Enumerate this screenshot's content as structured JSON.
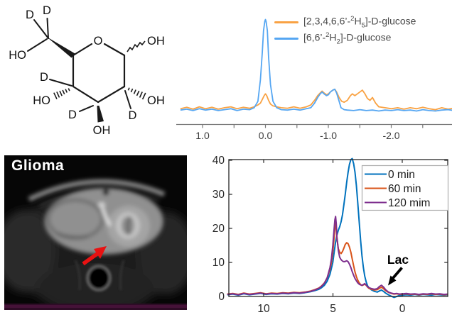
{
  "molecule": {
    "atom_o": "O",
    "atom_oh": "OH",
    "atom_ho": "HO",
    "atom_d": "D"
  },
  "nmr": {
    "x_ticks": [
      "1.0",
      "0.0",
      "-1.0",
      "-2.0"
    ],
    "legend": [
      {
        "pre": "[2,3,4,6,6’-",
        "mass": "2",
        "elem": "H",
        "count": "5",
        "post": "]-D-glucose"
      },
      {
        "pre": "[6,6’-",
        "mass": "2",
        "elem": "H",
        "count": "2",
        "post": "]-D-glucose"
      }
    ]
  },
  "mri": {
    "label": "Glioma"
  },
  "dmi": {
    "x_ticks": [
      "10",
      "5",
      "0"
    ],
    "y_ticks": [
      "40",
      "30",
      "20",
      "10",
      "0"
    ],
    "legend": [
      "0 min",
      "60 min",
      "120 mim"
    ],
    "annotation": "Lac"
  },
  "chart_data": [
    {
      "id": "nmr",
      "type": "line",
      "title": "2H NMR spectra of deuterated D-glucose",
      "x_axis_reversed": true,
      "xlim": [
        1.35,
        -3.0
      ],
      "x_tick_values": [
        1.0,
        0.0,
        -1.0,
        -2.0
      ],
      "grid": false,
      "legend_position": "top-right",
      "series": [
        {
          "name": "[2,3,4,6,6'-2H5]-D-glucose",
          "color": "#F9A243",
          "x": [
            1.35,
            1.25,
            1.15,
            1.05,
            0.95,
            0.85,
            0.75,
            0.65,
            0.55,
            0.45,
            0.35,
            0.25,
            0.18,
            0.12,
            0.08,
            0.05,
            0.02,
            0.0,
            -0.02,
            -0.05,
            -0.08,
            -0.12,
            -0.18,
            -0.25,
            -0.35,
            -0.45,
            -0.55,
            -0.65,
            -0.72,
            -0.78,
            -0.83,
            -0.87,
            -0.9,
            -0.93,
            -0.97,
            -1.0,
            -1.03,
            -1.07,
            -1.1,
            -1.13,
            -1.17,
            -1.21,
            -1.25,
            -1.3,
            -1.35,
            -1.38,
            -1.42,
            -1.46,
            -1.5,
            -1.54,
            -1.58,
            -1.62,
            -1.66,
            -1.7,
            -1.75,
            -1.8,
            -1.9,
            -2.0,
            -2.1,
            -2.2,
            -2.3,
            -2.4,
            -2.5,
            -2.6,
            -2.7,
            -2.8,
            -2.9,
            -3.0
          ],
          "y": [
            0.04,
            0.055,
            0.035,
            0.06,
            0.04,
            0.055,
            0.035,
            0.05,
            0.06,
            0.04,
            0.055,
            0.045,
            0.06,
            0.08,
            0.1,
            0.14,
            0.18,
            0.2,
            0.18,
            0.13,
            0.09,
            0.07,
            0.06,
            0.05,
            0.045,
            0.06,
            0.045,
            0.06,
            0.08,
            0.13,
            0.18,
            0.21,
            0.23,
            0.21,
            0.19,
            0.2,
            0.22,
            0.24,
            0.25,
            0.22,
            0.16,
            0.12,
            0.11,
            0.13,
            0.18,
            0.2,
            0.18,
            0.2,
            0.22,
            0.24,
            0.2,
            0.15,
            0.13,
            0.16,
            0.1,
            0.06,
            0.05,
            0.04,
            0.05,
            0.035,
            0.05,
            0.04,
            0.055,
            0.04,
            0.03,
            0.05,
            0.035,
            0.045
          ]
        },
        {
          "name": "[6,6'-2H2]-D-glucose",
          "color": "#55A6F2",
          "x": [
            1.35,
            1.25,
            1.15,
            1.05,
            0.95,
            0.85,
            0.75,
            0.65,
            0.55,
            0.45,
            0.35,
            0.25,
            0.18,
            0.12,
            0.08,
            0.05,
            0.03,
            0.01,
            0.0,
            -0.01,
            -0.03,
            -0.05,
            -0.08,
            -0.12,
            -0.18,
            -0.25,
            -0.35,
            -0.45,
            -0.55,
            -0.65,
            -0.72,
            -0.78,
            -0.83,
            -0.87,
            -0.9,
            -0.93,
            -0.97,
            -1.0,
            -1.03,
            -1.07,
            -1.1,
            -1.13,
            -1.17,
            -1.2,
            -1.25,
            -1.3,
            -1.4,
            -1.5,
            -1.6,
            -1.7,
            -1.8,
            -1.9,
            -2.0,
            -2.1,
            -2.2,
            -2.3,
            -2.4,
            -2.5,
            -2.6,
            -2.7,
            -2.8,
            -2.9,
            -3.0
          ],
          "y": [
            0.025,
            0.035,
            0.02,
            0.04,
            0.025,
            0.035,
            0.02,
            0.03,
            0.04,
            0.02,
            0.035,
            0.03,
            0.05,
            0.12,
            0.35,
            0.65,
            0.88,
            0.98,
            1.0,
            0.98,
            0.88,
            0.6,
            0.3,
            0.12,
            0.05,
            0.03,
            0.025,
            0.035,
            0.025,
            0.04,
            0.05,
            0.1,
            0.16,
            0.2,
            0.22,
            0.2,
            0.18,
            0.19,
            0.22,
            0.24,
            0.25,
            0.21,
            0.12,
            0.05,
            0.03,
            0.025,
            0.02,
            0.03,
            0.02,
            0.025,
            0.015,
            0.025,
            0.02,
            0.03,
            0.02,
            0.025,
            0.015,
            0.03,
            0.02,
            0.015,
            0.025,
            0.03,
            0.02
          ]
        }
      ]
    },
    {
      "id": "dmi",
      "type": "line",
      "title": "In vivo 2H spectra over time",
      "x_axis_reversed": true,
      "xlim": [
        12.6,
        -3.3
      ],
      "ylim": [
        0,
        42
      ],
      "x_tick_values": [
        10,
        5,
        0
      ],
      "y_tick_values": [
        0,
        10,
        20,
        30,
        40
      ],
      "grid": false,
      "legend_position": "top-right",
      "annotation": {
        "text": "Lac",
        "x": 1.3,
        "y": 3.3
      },
      "series": [
        {
          "name": "0 min",
          "color": "#0072BD",
          "x": [
            12.6,
            12.2,
            11.8,
            11.4,
            11.0,
            10.6,
            10.2,
            9.8,
            9.4,
            9.0,
            8.6,
            8.2,
            7.8,
            7.4,
            7.0,
            6.6,
            6.3,
            6.0,
            5.8,
            5.6,
            5.4,
            5.2,
            5.0,
            4.9,
            4.8,
            4.75,
            4.7,
            4.6,
            4.5,
            4.4,
            4.3,
            4.2,
            4.1,
            4.0,
            3.9,
            3.8,
            3.7,
            3.6,
            3.5,
            3.4,
            3.3,
            3.2,
            3.1,
            3.0,
            2.9,
            2.8,
            2.7,
            2.6,
            2.5,
            2.4,
            2.2,
            2.0,
            1.8,
            1.65,
            1.5,
            1.35,
            1.2,
            1.0,
            0.8,
            0.6,
            0.4,
            0.2,
            0.0,
            -0.3,
            -0.6,
            -0.9,
            -1.2,
            -1.5,
            -1.8,
            -2.1,
            -2.4,
            -2.7,
            -3.0,
            -3.3
          ],
          "y": [
            0.5,
            0.7,
            0.4,
            0.8,
            0.5,
            0.7,
            0.9,
            0.6,
            0.8,
            0.7,
            0.9,
            0.8,
            1.0,
            0.9,
            1.1,
            1.4,
            1.7,
            2.1,
            2.6,
            3.3,
            4.5,
            6.5,
            10.0,
            13.0,
            16.0,
            17.0,
            18.0,
            19.5,
            20.5,
            22.0,
            24.0,
            27.0,
            30.0,
            33.5,
            36.5,
            38.8,
            40.2,
            40.5,
            39.0,
            36.5,
            32.5,
            27.5,
            22.0,
            16.5,
            12.0,
            8.5,
            6.0,
            4.3,
            3.2,
            2.5,
            1.9,
            1.5,
            1.3,
            1.6,
            1.9,
            1.5,
            1.0,
            0.5,
            0.1,
            -0.3,
            0.0,
            0.3,
            0.4,
            0.5,
            0.4,
            0.6,
            0.4,
            0.6,
            0.5,
            0.4,
            0.6,
            0.5,
            0.4,
            0.5
          ]
        },
        {
          "name": "60 min",
          "color": "#D95319",
          "x": [
            12.6,
            12.2,
            11.8,
            11.4,
            11.0,
            10.6,
            10.2,
            9.8,
            9.4,
            9.0,
            8.6,
            8.2,
            7.8,
            7.4,
            7.0,
            6.6,
            6.3,
            6.0,
            5.8,
            5.6,
            5.4,
            5.2,
            5.1,
            5.0,
            4.9,
            4.85,
            4.8,
            4.75,
            4.7,
            4.6,
            4.5,
            4.4,
            4.3,
            4.2,
            4.1,
            4.0,
            3.9,
            3.8,
            3.7,
            3.6,
            3.5,
            3.4,
            3.3,
            3.2,
            3.1,
            3.0,
            2.9,
            2.8,
            2.7,
            2.6,
            2.5,
            2.4,
            2.2,
            2.0,
            1.8,
            1.65,
            1.5,
            1.35,
            1.2,
            1.0,
            0.8,
            0.6,
            0.4,
            0.2,
            0.0,
            -0.3,
            -0.6,
            -0.9,
            -1.2,
            -1.5,
            -1.8,
            -2.1,
            -2.4,
            -2.7,
            -3.0,
            -3.3
          ],
          "y": [
            0.7,
            0.9,
            0.6,
            1.0,
            0.7,
            0.9,
            1.1,
            0.8,
            1.0,
            0.9,
            1.1,
            1.0,
            1.2,
            1.1,
            1.3,
            1.6,
            2.0,
            2.5,
            3.1,
            4.0,
            5.5,
            8.0,
            10.0,
            13.0,
            17.5,
            20.0,
            21.5,
            20.0,
            17.0,
            14.0,
            13.0,
            12.6,
            13.2,
            14.2,
            15.3,
            15.8,
            15.5,
            14.5,
            13.0,
            11.0,
            9.0,
            7.2,
            5.8,
            4.8,
            4.0,
            3.5,
            3.2,
            3.4,
            3.6,
            3.3,
            2.8,
            2.4,
            2.1,
            1.9,
            2.0,
            2.4,
            2.7,
            2.3,
            1.7,
            1.2,
            0.9,
            0.7,
            0.8,
            0.6,
            0.7,
            0.8,
            0.6,
            0.7,
            0.5,
            0.7,
            0.6,
            0.8,
            0.6,
            0.7,
            0.5,
            0.6
          ]
        },
        {
          "name": "120 mim",
          "color": "#7E2F8E",
          "x": [
            12.6,
            12.2,
            11.8,
            11.4,
            11.0,
            10.6,
            10.2,
            9.8,
            9.4,
            9.0,
            8.6,
            8.2,
            7.8,
            7.4,
            7.0,
            6.6,
            6.3,
            6.0,
            5.8,
            5.6,
            5.4,
            5.2,
            5.1,
            5.0,
            4.9,
            4.85,
            4.8,
            4.75,
            4.7,
            4.6,
            4.5,
            4.4,
            4.3,
            4.2,
            4.1,
            4.0,
            3.9,
            3.8,
            3.7,
            3.6,
            3.5,
            3.4,
            3.3,
            3.2,
            3.1,
            3.0,
            2.9,
            2.8,
            2.7,
            2.6,
            2.5,
            2.4,
            2.2,
            2.0,
            1.8,
            1.65,
            1.5,
            1.35,
            1.2,
            1.0,
            0.8,
            0.6,
            0.4,
            0.2,
            0.0,
            -0.3,
            -0.6,
            -0.9,
            -1.2,
            -1.5,
            -1.8,
            -2.1,
            -2.4,
            -2.7,
            -3.0,
            -3.3
          ],
          "y": [
            0.6,
            0.8,
            0.5,
            0.9,
            0.6,
            0.8,
            1.0,
            0.7,
            0.9,
            0.8,
            1.0,
            0.9,
            1.1,
            1.0,
            1.2,
            1.5,
            1.9,
            2.4,
            3.0,
            3.9,
            5.5,
            8.5,
            11.0,
            15.0,
            20.0,
            22.5,
            23.5,
            21.5,
            17.5,
            13.5,
            11.5,
            10.8,
            10.4,
            10.2,
            10.3,
            10.5,
            10.2,
            9.5,
            8.5,
            7.3,
            6.2,
            5.3,
            4.6,
            4.0,
            3.6,
            3.4,
            3.3,
            3.5,
            3.8,
            3.4,
            2.9,
            2.6,
            2.3,
            2.1,
            2.3,
            2.9,
            3.3,
            2.8,
            2.0,
            1.3,
            1.0,
            0.8,
            0.9,
            0.7,
            0.8,
            0.9,
            0.7,
            0.8,
            0.6,
            0.8,
            0.7,
            0.9,
            0.7,
            0.8,
            0.6,
            0.7
          ]
        }
      ]
    }
  ]
}
